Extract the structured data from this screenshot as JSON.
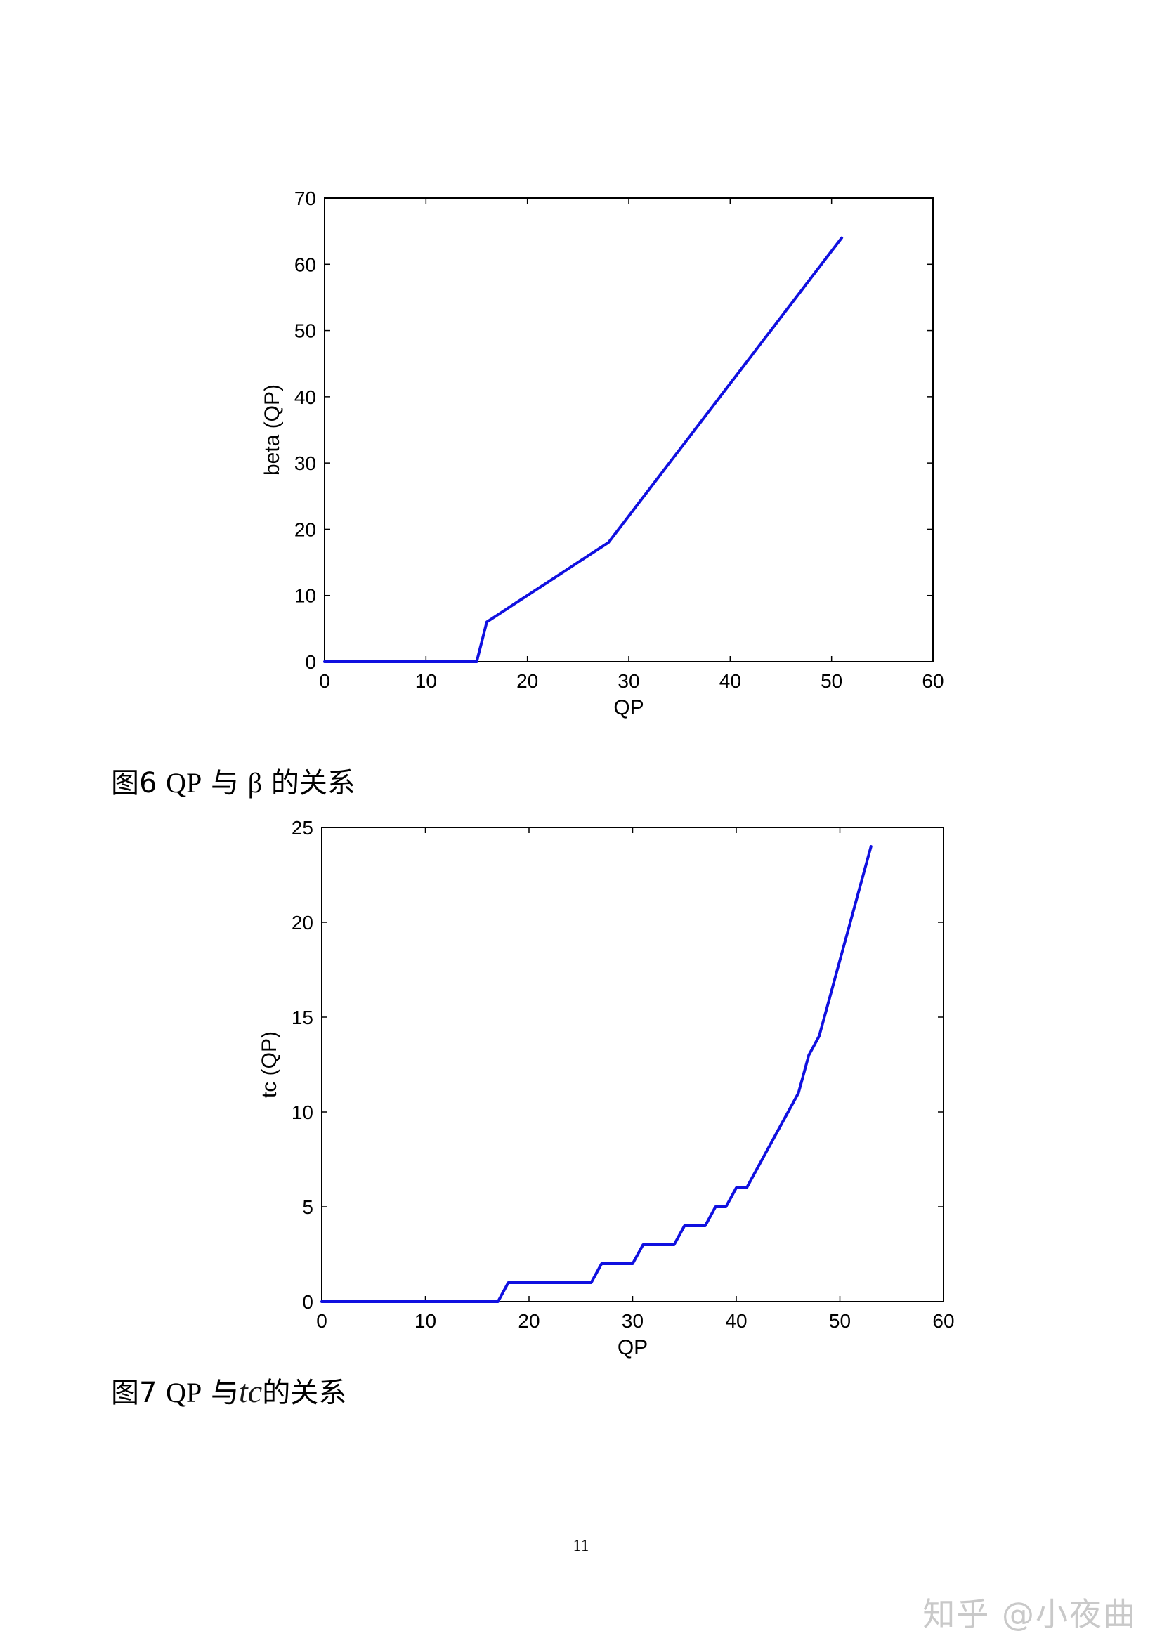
{
  "chart_data": [
    {
      "type": "line",
      "title": "",
      "xlabel": "QP",
      "ylabel": "beta (QP)",
      "xlim": [
        0,
        60
      ],
      "ylim": [
        0,
        70
      ],
      "xticks": [
        0,
        10,
        20,
        30,
        40,
        50,
        60
      ],
      "yticks": [
        0,
        10,
        20,
        30,
        40,
        50,
        60,
        70
      ],
      "grid": false,
      "series": [
        {
          "color": "#1010e0",
          "x": [
            0,
            15,
            16,
            17,
            18,
            19,
            20,
            21,
            22,
            23,
            24,
            25,
            26,
            27,
            28,
            29,
            30,
            31,
            32,
            33,
            34,
            35,
            36,
            37,
            38,
            39,
            40,
            41,
            42,
            43,
            44,
            45,
            46,
            47,
            48,
            49,
            50,
            51
          ],
          "y": [
            0,
            0,
            6,
            7,
            8,
            9,
            10,
            11,
            12,
            13,
            14,
            15,
            16,
            17,
            18,
            20,
            22,
            24,
            26,
            28,
            30,
            32,
            34,
            36,
            38,
            40,
            42,
            44,
            46,
            48,
            50,
            52,
            54,
            56,
            58,
            60,
            62,
            64
          ]
        }
      ]
    },
    {
      "type": "line",
      "title": "",
      "xlabel": "QP",
      "ylabel": "tc (QP)",
      "xlim": [
        0,
        60
      ],
      "ylim": [
        0,
        25
      ],
      "xticks": [
        0,
        10,
        20,
        30,
        40,
        50,
        60
      ],
      "yticks": [
        0,
        5,
        10,
        15,
        20,
        25
      ],
      "grid": false,
      "series": [
        {
          "color": "#1010e0",
          "x": [
            0,
            17,
            18,
            26,
            27,
            29,
            30,
            31,
            33,
            34,
            35,
            36,
            37,
            38,
            39,
            40,
            41,
            42,
            43,
            44,
            45,
            46,
            47,
            48,
            49,
            50,
            51,
            52,
            53
          ],
          "y": [
            0,
            0,
            1,
            1,
            2,
            2,
            2,
            3,
            3,
            3,
            4,
            4,
            4,
            5,
            5,
            6,
            6,
            7,
            8,
            9,
            10,
            11,
            13,
            14,
            16,
            18,
            20,
            22,
            24
          ]
        }
      ]
    }
  ],
  "captions": {
    "fig6": {
      "prefix": "图6 ",
      "qp": "QP",
      "mid": " 与 ",
      "symbol": "β",
      "suffix": " 的关系"
    },
    "fig7": {
      "prefix": "图7 ",
      "qp": "QP",
      "mid": " 与",
      "symbol": "tc",
      "suffix": "的关系"
    }
  },
  "page_number": "11",
  "watermark": "知乎 @小夜曲"
}
